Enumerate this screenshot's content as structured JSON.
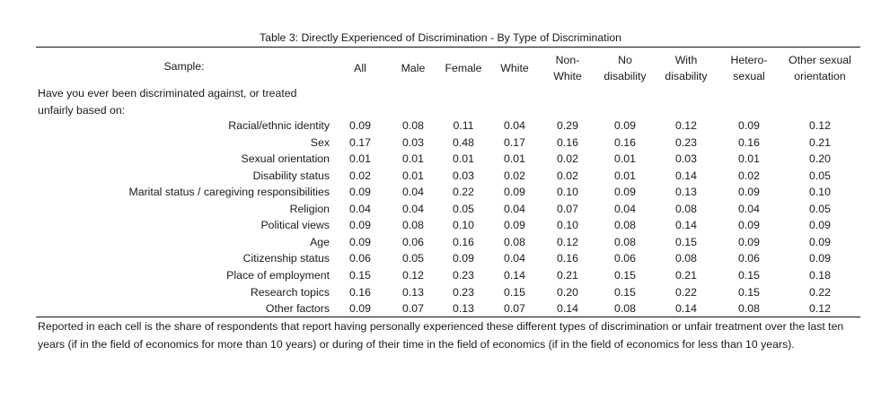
{
  "title": "Table 3: Directly Experienced of Discrimination - By Type of Discrimination",
  "sample_label": "Sample:",
  "columns": [
    {
      "line1": "All",
      "line2": ""
    },
    {
      "line1": "Male",
      "line2": ""
    },
    {
      "line1": "Female",
      "line2": ""
    },
    {
      "line1": "White",
      "line2": ""
    },
    {
      "line1": "Non-",
      "line2": "White"
    },
    {
      "line1": "No",
      "line2": "disability"
    },
    {
      "line1": "With",
      "line2": "disability"
    },
    {
      "line1": "Hetero-",
      "line2": "sexual"
    },
    {
      "line1": "Other sexual",
      "line2": "orientation"
    }
  ],
  "question_line1": "Have you ever been discriminated against, or treated",
  "question_line2": "unfairly based on:",
  "rows": [
    {
      "label": "Racial/ethnic identity",
      "values": [
        "0.09",
        "0.08",
        "0.11",
        "0.04",
        "0.29",
        "0.09",
        "0.12",
        "0.09",
        "0.12"
      ]
    },
    {
      "label": "Sex",
      "values": [
        "0.17",
        "0.03",
        "0.48",
        "0.17",
        "0.16",
        "0.16",
        "0.23",
        "0.16",
        "0.21"
      ]
    },
    {
      "label": "Sexual orientation",
      "values": [
        "0.01",
        "0.01",
        "0.01",
        "0.01",
        "0.02",
        "0.01",
        "0.03",
        "0.01",
        "0.20"
      ]
    },
    {
      "label": "Disability status",
      "values": [
        "0.02",
        "0.01",
        "0.03",
        "0.02",
        "0.02",
        "0.01",
        "0.14",
        "0.02",
        "0.05"
      ]
    },
    {
      "label": "Marital status / caregiving responsibilities",
      "values": [
        "0.09",
        "0.04",
        "0.22",
        "0.09",
        "0.10",
        "0.09",
        "0.13",
        "0.09",
        "0.10"
      ]
    },
    {
      "label": "Religion",
      "values": [
        "0.04",
        "0.04",
        "0.05",
        "0.04",
        "0.07",
        "0.04",
        "0.08",
        "0.04",
        "0.05"
      ]
    },
    {
      "label": "Political views",
      "values": [
        "0.09",
        "0.08",
        "0.10",
        "0.09",
        "0.10",
        "0.08",
        "0.14",
        "0.09",
        "0.09"
      ]
    },
    {
      "label": "Age",
      "values": [
        "0.09",
        "0.06",
        "0.16",
        "0.08",
        "0.12",
        "0.08",
        "0.15",
        "0.09",
        "0.09"
      ]
    },
    {
      "label": "Citizenship status",
      "values": [
        "0.06",
        "0.05",
        "0.09",
        "0.04",
        "0.16",
        "0.06",
        "0.08",
        "0.06",
        "0.09"
      ]
    },
    {
      "label": "Place of employment",
      "values": [
        "0.15",
        "0.12",
        "0.23",
        "0.14",
        "0.21",
        "0.15",
        "0.21",
        "0.15",
        "0.18"
      ]
    },
    {
      "label": "Research topics",
      "values": [
        "0.16",
        "0.13",
        "0.23",
        "0.15",
        "0.20",
        "0.15",
        "0.22",
        "0.15",
        "0.22"
      ]
    },
    {
      "label": "Other factors",
      "values": [
        "0.09",
        "0.07",
        "0.13",
        "0.07",
        "0.14",
        "0.08",
        "0.14",
        "0.08",
        "0.12"
      ]
    }
  ],
  "note": "Reported in each cell is the share of respondents that report having personally experienced these different types of discrimination or unfair treatment over the last ten years (if in the field of economics for more than 10 years) or during of their time in the field of economics (if in the field of economics for less than 10 years)."
}
